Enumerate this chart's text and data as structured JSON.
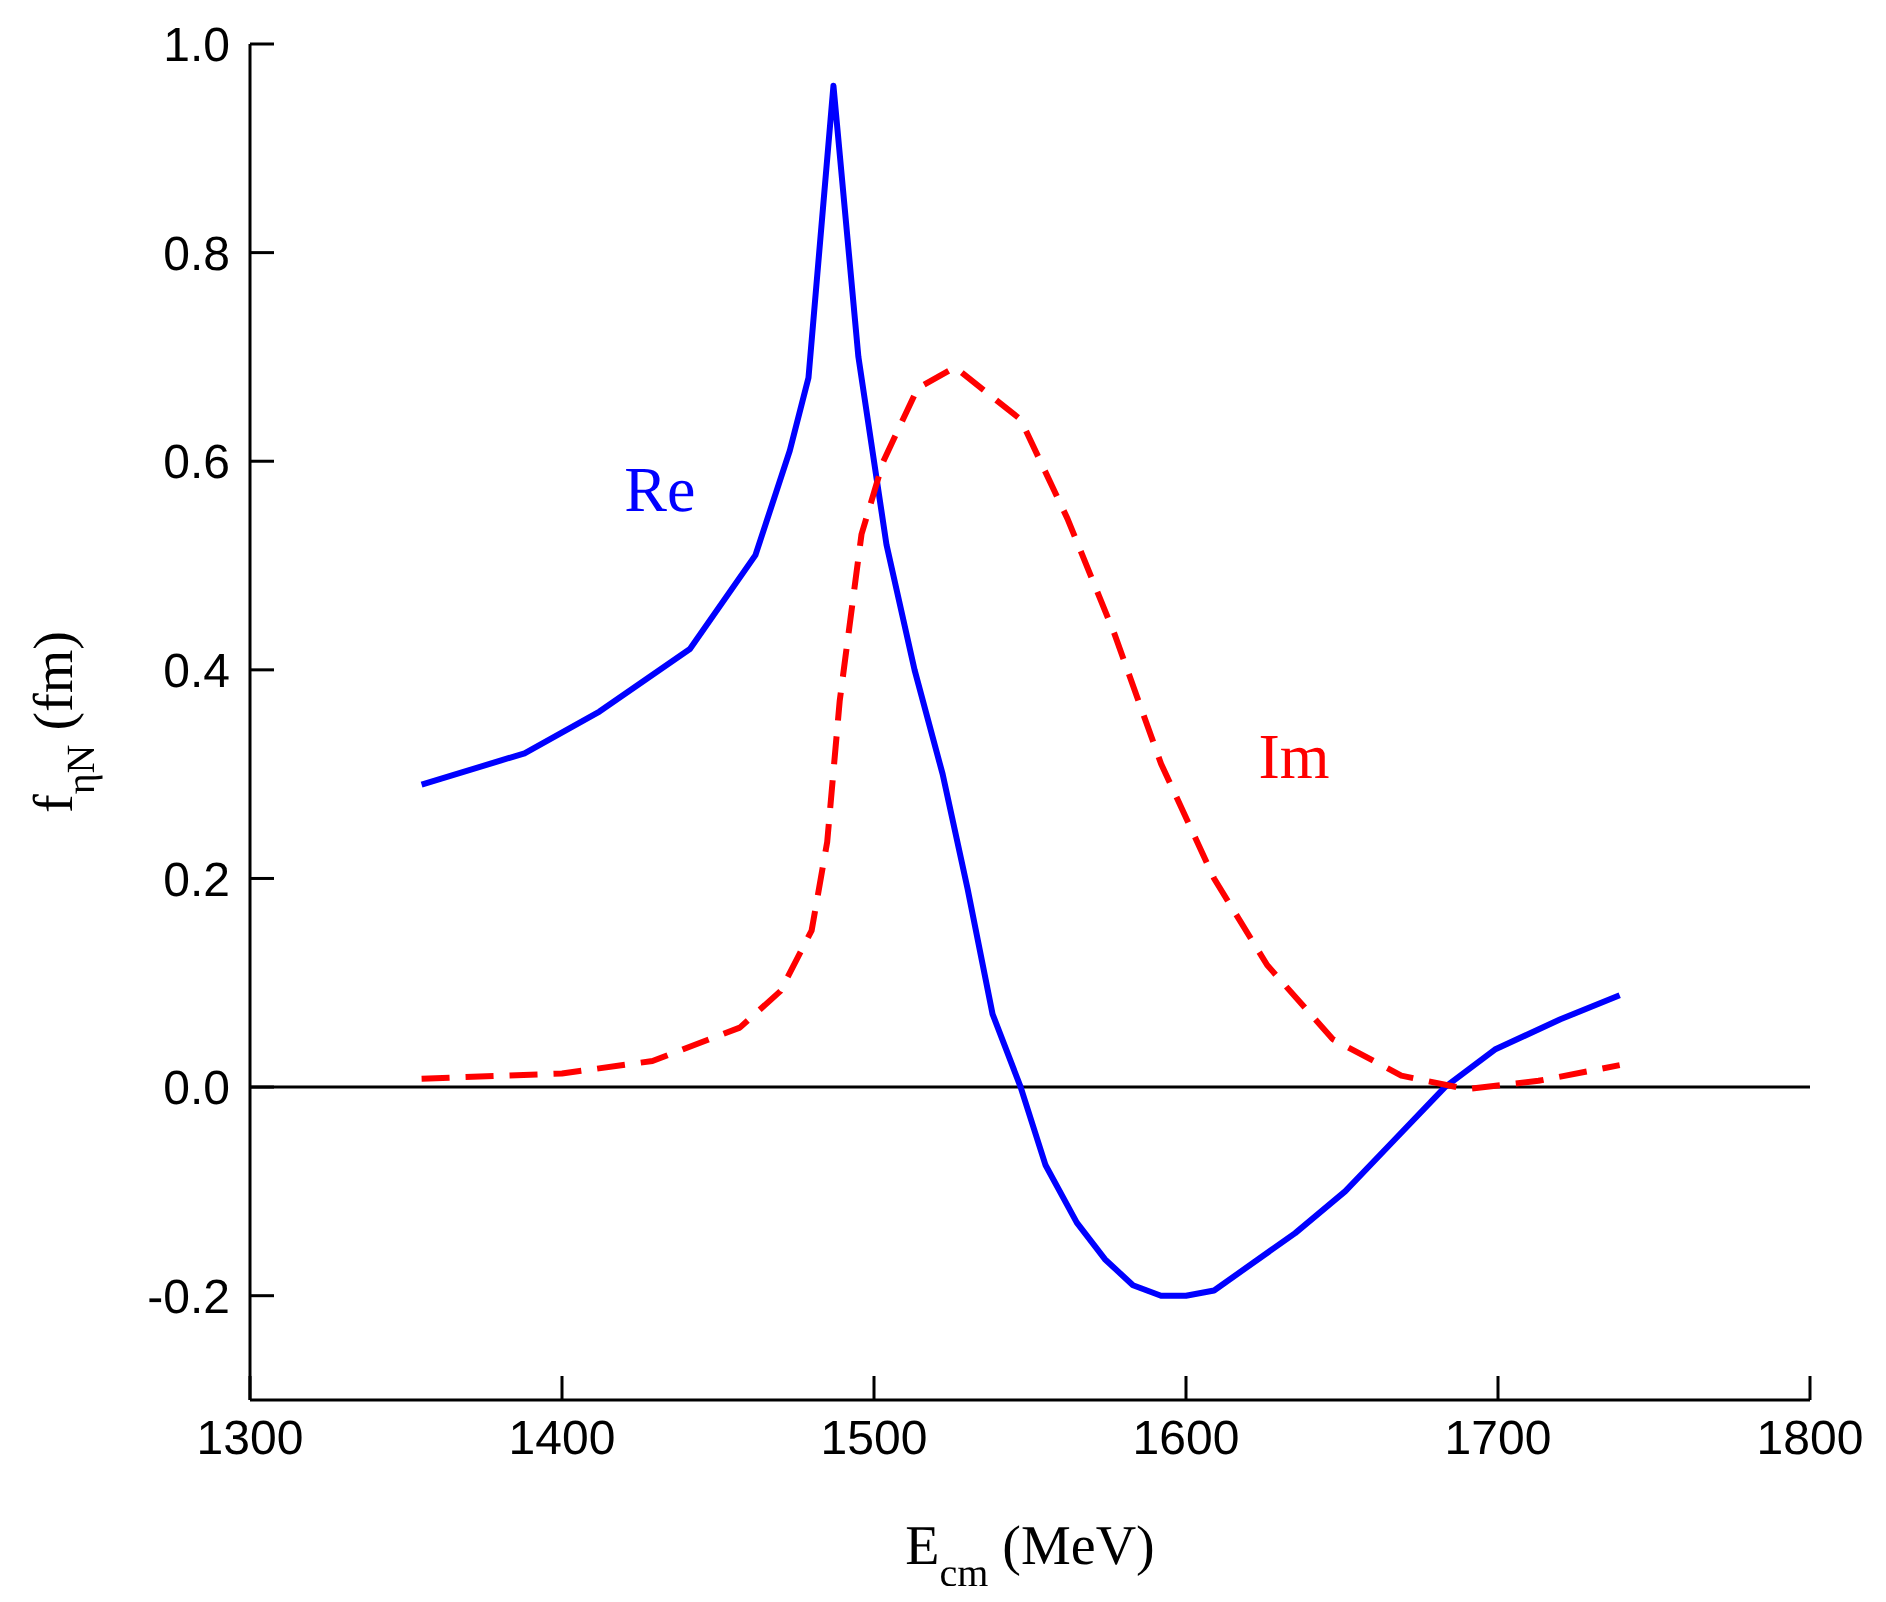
{
  "chart_data": {
    "type": "line",
    "xlabel": "E$_{cm}$ (MeV)",
    "ylabel": "f$_{ηN}$ (fm)",
    "xlim": [
      1300,
      1800
    ],
    "xticks": [
      1300,
      1400,
      1500,
      1600,
      1700,
      1800
    ],
    "ylim": [
      -0.3,
      1.0
    ],
    "yticks": [
      {
        "value": -0.2,
        "label": "-0.2"
      },
      {
        "value": 0,
        "label": "0.0"
      },
      {
        "value": 0.2,
        "label": "0.2"
      },
      {
        "value": 0.4,
        "label": "0.4"
      },
      {
        "value": 0.6,
        "label": "0.6"
      },
      {
        "value": 0.8,
        "label": "0.8"
      },
      {
        "value": 1.0,
        "label": "1.0"
      }
    ],
    "grid": false,
    "legend": false,
    "marker": "none",
    "ref_lines": [
      {
        "axis": "y",
        "value": 0,
        "color": "#000000"
      }
    ],
    "series": [
      {
        "name": "Re",
        "color": "#0000ff",
        "line_style": "solid",
        "x": [
          1355,
          1388,
          1412,
          1441,
          1462,
          1473,
          1479,
          1487,
          1495,
          1504,
          1513,
          1522,
          1530,
          1538,
          1547,
          1555,
          1565,
          1574,
          1583,
          1592,
          1600,
          1609,
          1635,
          1651,
          1667,
          1683,
          1699,
          1720,
          1739
        ],
        "values": [
          0.29,
          0.32,
          0.36,
          0.42,
          0.51,
          0.61,
          0.68,
          0.96,
          0.7,
          0.52,
          0.4,
          0.3,
          0.19,
          0.07,
          0,
          -0.075,
          -0.13,
          -0.165,
          -0.19,
          -0.2,
          -0.2,
          -0.195,
          -0.14,
          -0.1,
          -0.05,
          0,
          0.036,
          0.065,
          0.088
        ]
      },
      {
        "name": "Im",
        "color": "#ff0000",
        "line_style": "dashed",
        "x": [
          1355,
          1400,
          1429,
          1457,
          1470,
          1480,
          1485,
          1489,
          1496,
          1503,
          1514,
          1526,
          1547,
          1562,
          1577,
          1592,
          1609,
          1626,
          1647,
          1669,
          1690,
          1713,
          1739
        ],
        "values": [
          0.008,
          0.013,
          0.025,
          0.057,
          0.092,
          0.15,
          0.235,
          0.37,
          0.53,
          0.6,
          0.67,
          0.69,
          0.64,
          0.545,
          0.435,
          0.31,
          0.2,
          0.117,
          0.046,
          0.011,
          -0.002,
          0.006,
          0.021
        ]
      }
    ]
  }
}
